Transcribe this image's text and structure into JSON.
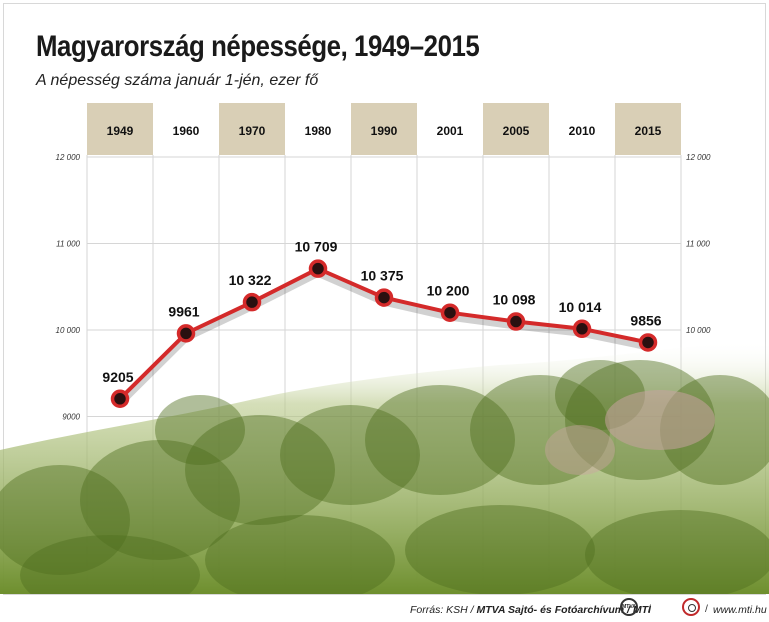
{
  "title": "Magyarország népessége, 1949–2015",
  "subtitle": "A népesség száma január 1-jén, ezer fő",
  "footer": {
    "source_prefix": "Forrás: KSH / ",
    "source_bold": "MTVA Sajtó- és Fotóarchívum / MTI",
    "logo1_text": "MTVA",
    "website": "www.mti.hu"
  },
  "colors": {
    "line": "#d42a2a",
    "marker_fill": "#2a1010",
    "header_shaded": "#d9cfb6",
    "photo_green": "#6e8f2e"
  },
  "chart_data": {
    "type": "line",
    "title": "Magyarország népessége, 1949–2015",
    "subtitle": "A népesség száma január 1-jén, ezer fő",
    "categories": [
      "1949",
      "1960",
      "1970",
      "1980",
      "1990",
      "2001",
      "2005",
      "2010",
      "2015"
    ],
    "values": [
      9205,
      9961,
      10322,
      10709,
      10375,
      10200,
      10098,
      10014,
      9856
    ],
    "value_labels": [
      "9205",
      "9961",
      "10 322",
      "10 709",
      "10 375",
      "10 200",
      "10 098",
      "10 014",
      "9856"
    ],
    "shaded_headers": [
      true,
      false,
      true,
      false,
      true,
      false,
      true,
      false,
      true
    ],
    "y_ticks": [
      9000,
      10000,
      11000,
      12000
    ],
    "y_tick_labels": [
      "9000",
      "10 000",
      "11 000",
      "12 000"
    ],
    "right_tick_labels": [
      "9000",
      "10 000",
      "11 000",
      "12 000"
    ],
    "ylim": [
      8500,
      12000
    ],
    "grid": true,
    "legend": "none"
  }
}
